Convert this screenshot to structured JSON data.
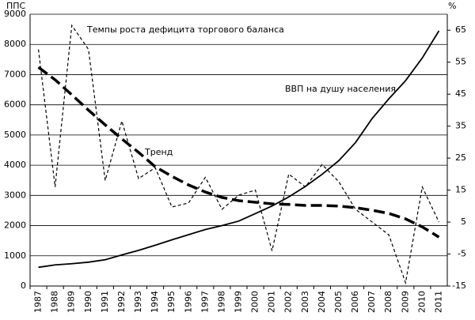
{
  "chart_data": {
    "type": "line",
    "ylabel": "ППС",
    "y2label": "%",
    "categories": [
      "1987",
      "1988",
      "1989",
      "1990",
      "1991",
      "1992",
      "1993",
      "1994",
      "1995",
      "1996",
      "1997",
      "1998",
      "1999",
      "2000",
      "2001",
      "2002",
      "2003",
      "2004",
      "2005",
      "2006",
      "2007",
      "2008",
      "2009",
      "2010",
      "2011"
    ],
    "series": [
      {
        "name": "ВВП на душу населения",
        "color": "#000000",
        "line_style": "solid",
        "axis": "y",
        "values": [
          620,
          700,
          740,
          790,
          870,
          1030,
          1180,
          1350,
          1530,
          1700,
          1870,
          2000,
          2150,
          2400,
          2650,
          2950,
          3300,
          3700,
          4150,
          4750,
          5550,
          6200,
          6800,
          7550,
          8450
        ]
      },
      {
        "name": "Темпы роста  дефицита торгового баланса",
        "color": "#000000",
        "line_style": "dashed",
        "axis": "y2",
        "values": [
          59,
          16,
          66.5,
          59,
          18,
          36.6,
          18.6,
          22,
          9.7,
          11,
          19,
          9,
          13.4,
          15,
          -4,
          20,
          16,
          23,
          17.6,
          9,
          5,
          1,
          -14,
          16,
          5
        ]
      },
      {
        "name": "Тренд",
        "color": "#000000",
        "line_style": "long-dashed",
        "axis": "y2",
        "values": [
          53.4,
          49.5,
          44.8,
          40,
          35.4,
          31,
          26.8,
          22.3,
          19.3,
          16.6,
          14.4,
          12.7,
          11.7,
          11.2,
          10.7,
          10.5,
          10.2,
          10.2,
          10,
          9.5,
          8.7,
          7.7,
          6,
          3.5,
          0.3
        ]
      }
    ],
    "ylim": [
      0,
      9000
    ],
    "yticks": [
      0,
      1000,
      2000,
      3000,
      4000,
      5000,
      6000,
      7000,
      8000,
      9000
    ],
    "y2lim": [
      -15,
      70
    ],
    "y2ticks": [
      -15,
      -5,
      5,
      15,
      25,
      35,
      45,
      55,
      65
    ],
    "grid": true
  }
}
